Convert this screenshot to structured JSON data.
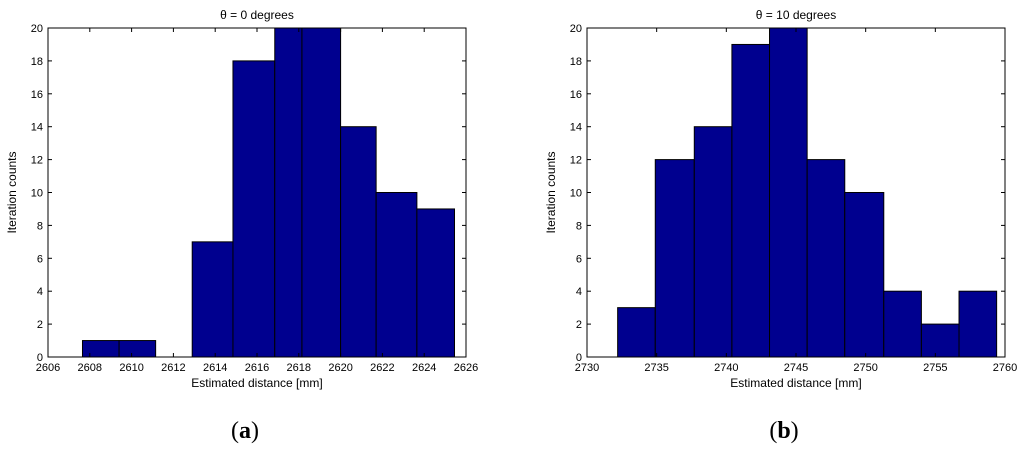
{
  "colors": {
    "bar_fill": "#00008f",
    "bar_stroke": "#000000",
    "axis": "#000000",
    "background": "#ffffff"
  },
  "captions": {
    "a": {
      "open": "(",
      "letter": "a",
      "close": ")"
    },
    "b": {
      "open": "(",
      "letter": "b",
      "close": ")"
    }
  },
  "chart_data": [
    {
      "type": "bar",
      "title": "θ = 0 degrees",
      "xlabel": "Estimated distance [mm]",
      "ylabel": "Iteration counts",
      "xlim": [
        2606,
        2626
      ],
      "ylim": [
        0,
        20
      ],
      "xticks": [
        2606,
        2608,
        2610,
        2612,
        2614,
        2616,
        2618,
        2620,
        2622,
        2624,
        2626
      ],
      "yticks": [
        0,
        2,
        4,
        6,
        8,
        10,
        12,
        14,
        16,
        18,
        20
      ],
      "grid": false,
      "bins": [
        {
          "x0": 2607.65,
          "x1": 2609.4,
          "value": 1
        },
        {
          "x0": 2609.4,
          "x1": 2611.15,
          "value": 1
        },
        {
          "x0": 2611.15,
          "x1": 2612.9,
          "value": 0
        },
        {
          "x0": 2612.9,
          "x1": 2614.85,
          "value": 7
        },
        {
          "x0": 2614.85,
          "x1": 2616.85,
          "value": 18
        },
        {
          "x0": 2616.85,
          "x1": 2618.15,
          "value": 20
        },
        {
          "x0": 2618.15,
          "x1": 2620.0,
          "value": 20
        },
        {
          "x0": 2620.0,
          "x1": 2621.7,
          "value": 14
        },
        {
          "x0": 2621.7,
          "x1": 2623.65,
          "value": 10
        },
        {
          "x0": 2623.65,
          "x1": 2625.45,
          "value": 9
        }
      ]
    },
    {
      "type": "bar",
      "title": "θ = 10 degrees",
      "xlabel": "Estimated distance [mm]",
      "ylabel": "Iteration counts",
      "xlim": [
        2730,
        2760
      ],
      "ylim": [
        0,
        20
      ],
      "xticks": [
        2730,
        2735,
        2740,
        2745,
        2750,
        2755,
        2760
      ],
      "yticks": [
        0,
        2,
        4,
        6,
        8,
        10,
        12,
        14,
        16,
        18,
        20
      ],
      "grid": false,
      "bins": [
        {
          "x0": 2732.2,
          "x1": 2734.9,
          "value": 3
        },
        {
          "x0": 2734.9,
          "x1": 2737.7,
          "value": 12
        },
        {
          "x0": 2737.7,
          "x1": 2740.4,
          "value": 14
        },
        {
          "x0": 2740.4,
          "x1": 2743.1,
          "value": 19
        },
        {
          "x0": 2743.1,
          "x1": 2745.8,
          "value": 20
        },
        {
          "x0": 2745.8,
          "x1": 2748.5,
          "value": 12
        },
        {
          "x0": 2748.5,
          "x1": 2751.3,
          "value": 10
        },
        {
          "x0": 2751.3,
          "x1": 2754.0,
          "value": 4
        },
        {
          "x0": 2754.0,
          "x1": 2756.7,
          "value": 2
        },
        {
          "x0": 2756.7,
          "x1": 2759.4,
          "value": 4
        }
      ]
    }
  ]
}
